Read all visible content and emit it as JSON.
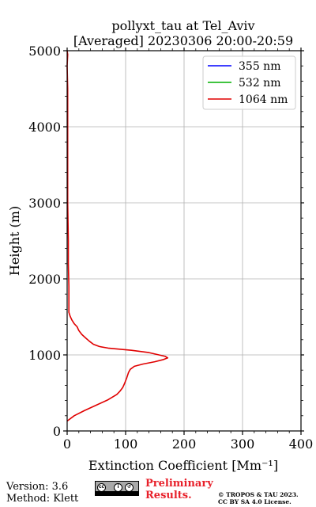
{
  "chart_data": {
    "type": "line",
    "title": "pollyxt_tau at Tel_Aviv",
    "subtitle": "[Averaged] 20230306 20:00-20:59",
    "xlabel": "Extinction Coefficient [Mm⁻¹]",
    "ylabel": "Height (m)",
    "xlim": [
      0,
      400
    ],
    "ylim": [
      0,
      5000
    ],
    "xticks": [
      "0",
      "100",
      "200",
      "300",
      "400"
    ],
    "yticks": [
      "0",
      "1000",
      "2000",
      "3000",
      "4000",
      "5000"
    ],
    "grid": true,
    "legend_position": "top-right",
    "series": [
      {
        "name": "355 nm",
        "color": "#0000ff",
        "points": []
      },
      {
        "name": "532 nm",
        "color": "#00b000",
        "points": []
      },
      {
        "name": "1064 nm",
        "color": "#e00000",
        "points": [
          [
            0,
            130
          ],
          [
            12,
            200
          ],
          [
            30,
            270
          ],
          [
            50,
            340
          ],
          [
            70,
            410
          ],
          [
            85,
            480
          ],
          [
            90,
            520
          ],
          [
            95,
            570
          ],
          [
            98,
            620
          ],
          [
            102,
            700
          ],
          [
            105,
            770
          ],
          [
            108,
            810
          ],
          [
            115,
            850
          ],
          [
            130,
            880
          ],
          [
            150,
            910
          ],
          [
            165,
            940
          ],
          [
            172,
            960
          ],
          [
            168,
            980
          ],
          [
            140,
            1030
          ],
          [
            110,
            1060
          ],
          [
            70,
            1090
          ],
          [
            55,
            1110
          ],
          [
            45,
            1140
          ],
          [
            38,
            1180
          ],
          [
            32,
            1220
          ],
          [
            25,
            1270
          ],
          [
            20,
            1320
          ],
          [
            17,
            1370
          ],
          [
            12,
            1410
          ],
          [
            8,
            1460
          ],
          [
            5,
            1510
          ],
          [
            3,
            1560
          ],
          [
            3,
            1700
          ],
          [
            3,
            1900
          ],
          [
            2,
            2200
          ],
          [
            2,
            2500
          ],
          [
            1,
            3000
          ],
          [
            1,
            3500
          ],
          [
            1,
            4000
          ],
          [
            1,
            4500
          ],
          [
            0,
            4800
          ],
          [
            1,
            4950
          ],
          [
            0,
            5000
          ]
        ]
      }
    ]
  },
  "footer": {
    "version": "Version: 3.6",
    "method": "Method: Klett",
    "preliminary_1": "Preliminary",
    "preliminary_2": "Results.",
    "copyright_1": "© TROPOS & TAU 2023.",
    "copyright_2": "CC BY SA 4.0 License.",
    "cc_badge": "cc-by-sa-badge"
  }
}
